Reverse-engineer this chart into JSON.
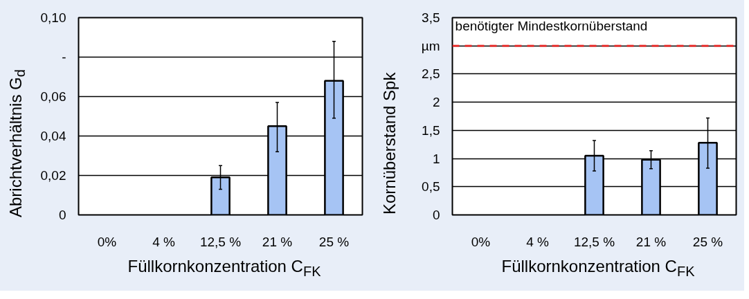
{
  "chart_data": [
    {
      "type": "bar",
      "ylabel": "Abrichtverhältnis G$_{d}$",
      "xlabel": "Füllkornkonzentration C$_{FK}$",
      "categories": [
        "0%",
        "4 %",
        "12,5 %",
        "21 %",
        "25 %"
      ],
      "values": [
        null,
        null,
        0.019,
        0.045,
        0.068
      ],
      "errors": [
        null,
        null,
        [
          0.013,
          0.025
        ],
        [
          0.032,
          0.057
        ],
        [
          0.049,
          0.088
        ]
      ],
      "color": "#a6c4f4",
      "ylim": [
        0,
        0.1
      ],
      "yticks": [
        0,
        {
          "value": 0.02,
          "label": "0,02"
        },
        {
          "value": 0.04,
          "label": "0,04"
        },
        {
          "value": 0.06,
          "label": "0,06"
        },
        {
          "value": 0.08,
          "label": "-"
        },
        {
          "value": 0.1,
          "label": "0,10"
        }
      ],
      "grid": "y"
    },
    {
      "type": "bar",
      "ylabel": "Kornüberstand Spk",
      "xlabel": "Füllkornkonzentration C$_{FK}$",
      "categories": [
        "0%",
        "4 %",
        "12,5 %",
        "21 %",
        "25 %"
      ],
      "values": [
        null,
        null,
        1.05,
        0.98,
        1.28
      ],
      "errors": [
        null,
        null,
        [
          0.78,
          1.32
        ],
        [
          0.82,
          1.14
        ],
        [
          0.83,
          1.72
        ]
      ],
      "color": "#a6c4f4",
      "ylim": [
        0,
        3.5
      ],
      "yticks": [
        0,
        {
          "value": 0.5,
          "label": "0,5"
        },
        1,
        {
          "value": 1.5,
          "label": "1,5"
        },
        2,
        {
          "value": 2.5,
          "label": "2,5"
        },
        {
          "value": 3,
          "label": "µm"
        },
        {
          "value": 3.5,
          "label": "3,5"
        }
      ],
      "grid": "y",
      "ref_lines": [
        {
          "axis": "y",
          "value": 3,
          "label": "benötigter Mindestkornüberstand",
          "color": "#e8312f",
          "line_style": "dashed"
        }
      ]
    }
  ]
}
